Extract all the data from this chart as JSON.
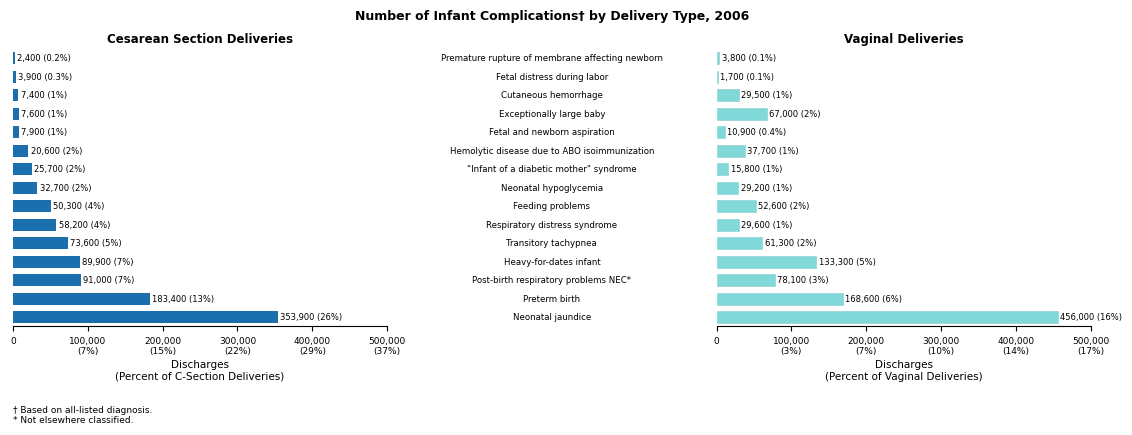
{
  "title": "Number of Infant Complications† by Delivery Type, 2006",
  "categories": [
    "Premature rupture of membrane affecting newborn",
    "Fetal distress during labor",
    "Cutaneous hemorrhage",
    "Exceptionally large baby",
    "Fetal and newborn aspiration",
    "Hemolytic disease due to ABO isoimmunization",
    "\"Infant of a diabetic mother\" syndrome",
    "Neonatal hypoglycemia",
    "Feeding problems",
    "Respiratory distress syndrome",
    "Transitory tachypnea",
    "Heavy-for-dates infant",
    "Post-birth respiratory problems NEC*",
    "Preterm birth",
    "Neonatal jaundice"
  ],
  "csection_values": [
    2400,
    3900,
    7400,
    7600,
    7900,
    20600,
    25700,
    32700,
    50300,
    58200,
    73600,
    89900,
    91000,
    183400,
    353900
  ],
  "csection_labels": [
    "2,400 (0.2%)",
    "3,900 (0.3%)",
    "7,400 (1%)",
    "7,600 (1%)",
    "7,900 (1%)",
    "20,600 (2%)",
    "25,700 (2%)",
    "32,700 (2%)",
    "50,300 (4%)",
    "58,200 (4%)",
    "73,600 (5%)",
    "89,900 (7%)",
    "91,000 (7%)",
    "183,400 (13%)",
    "353,900 (26%)"
  ],
  "vaginal_values": [
    3800,
    1700,
    29500,
    67000,
    10900,
    37700,
    15800,
    29200,
    52600,
    29600,
    61300,
    133300,
    78100,
    168600,
    456000
  ],
  "vaginal_labels": [
    "3,800 (0.1%)",
    "1,700 (0.1%)",
    "29,500 (1%)",
    "67,000 (2%)",
    "10,900 (0.4%)",
    "37,700 (1%)",
    "15,800 (1%)",
    "29,200 (1%)",
    "52,600 (2%)",
    "29,600 (1%)",
    "61,300 (2%)",
    "133,300 (5%)",
    "78,100 (3%)",
    "168,600 (6%)",
    "456,000 (16%)"
  ],
  "csection_color": "#1B6FAD",
  "vaginal_color": "#80D8D8",
  "csection_title": "Cesarean Section Deliveries",
  "vaginal_title": "Vaginal Deliveries",
  "csection_xlabel": "Discharges\n(Percent of C-Section Deliveries)",
  "vaginal_xlabel": "Discharges\n(Percent of Vaginal Deliveries)",
  "csection_xlim": 500000,
  "vaginal_xlim": 500000,
  "csection_xticks": [
    0,
    100000,
    200000,
    300000,
    400000,
    500000
  ],
  "csection_xticklabels": [
    "0",
    "100,000\n(7%)",
    "200,000\n(15%)",
    "300,000\n(22%)",
    "400,000\n(29%)",
    "500,000\n(37%)"
  ],
  "vaginal_xticks": [
    0,
    100000,
    200000,
    300000,
    400000,
    500000
  ],
  "vaginal_xticklabels": [
    "0",
    "100,000\n(3%)",
    "200,000\n(7%)",
    "300,000\n(10%)",
    "400,000\n(14%)",
    "500,000\n(17%)"
  ],
  "footnote": "† Based on all-listed diagnosis.\n* Not elsewhere classified.",
  "background_color": "#ffffff"
}
